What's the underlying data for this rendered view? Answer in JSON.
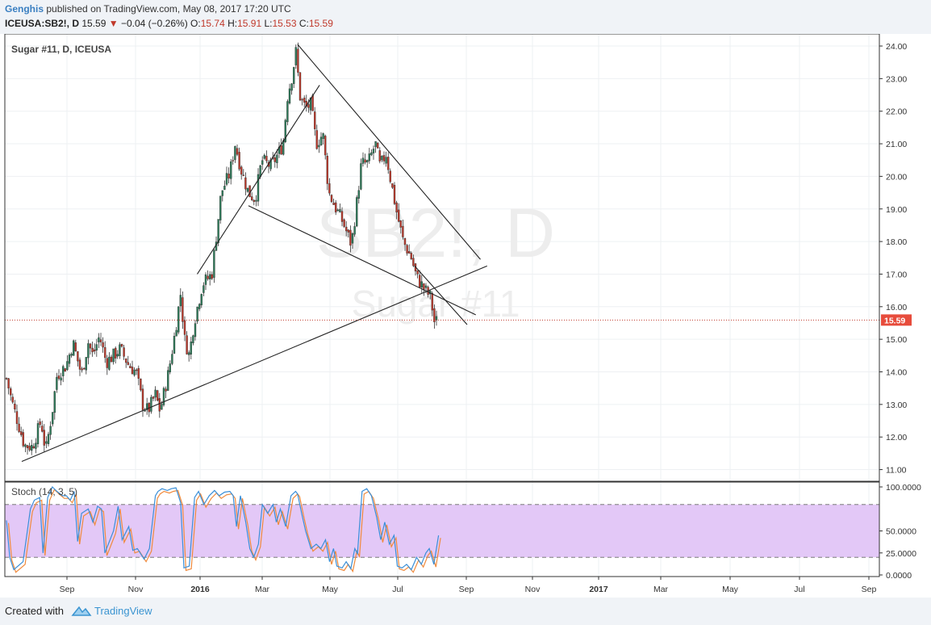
{
  "header": {
    "author": "Genghis",
    "published": "published on TradingView.com, May 08, 2017 17:20 UTC",
    "symbol": "ICEUSA:SB2!, D",
    "price": "15.59",
    "change": "−0.04 (−0.26%)",
    "o_label": "O:",
    "o": "15.74",
    "h_label": "H:",
    "h": "15.91",
    "l_label": "L:",
    "l": "15.53",
    "c_label": "C:",
    "c": "15.59"
  },
  "watermark": {
    "main": "SB2!, D",
    "sub": "Sugar #11"
  },
  "footer": {
    "created_with": "Created with",
    "brand": "TradingView"
  },
  "colors": {
    "up": "#2e7d5b",
    "down": "#c0392b",
    "k_line": "#3a8fd8",
    "d_line": "#f08a3c",
    "band": "#e3c8f7"
  },
  "chart_data": [
    {
      "type": "candlestick",
      "title": "Sugar #11, D, ICEUSA",
      "x_ticks": [
        "Sep",
        "Nov",
        "2016",
        "Mar",
        "May",
        "Jul",
        "Sep",
        "Nov",
        "2017",
        "Mar",
        "May",
        "Jul",
        "Sep"
      ],
      "y_ticks": [
        "24.00",
        "23.00",
        "22.00",
        "21.00",
        "20.00",
        "19.00",
        "18.00",
        "17.00",
        "16.00",
        "15.00",
        "14.00",
        "13.00",
        "12.00",
        "11.00"
      ],
      "ylim": [
        10.7,
        24.3
      ],
      "last_price_label": "15.59",
      "last_price": 15.59,
      "close_path": [
        [
          "2015-07-28",
          13.8
        ],
        [
          "2015-08-05",
          13.1
        ],
        [
          "2015-08-15",
          12.4
        ],
        [
          "2015-08-24",
          11.75
        ],
        [
          "2015-09-05",
          11.7
        ],
        [
          "2015-09-18",
          12.5
        ],
        [
          "2015-09-25",
          11.55
        ],
        [
          "2015-10-05",
          12.8
        ],
        [
          "2015-10-12",
          13.9
        ],
        [
          "2015-10-26",
          14.2
        ],
        [
          "2015-11-05",
          14.9
        ],
        [
          "2015-11-18",
          13.9
        ],
        [
          "2015-11-28",
          14.9
        ],
        [
          "2015-12-05",
          14.5
        ],
        [
          "2015-12-15",
          15.1
        ],
        [
          "2015-12-25",
          14.3
        ],
        [
          "2016-01-05",
          14.5
        ],
        [
          "2016-01-15",
          14.7
        ],
        [
          "2016-01-28",
          14.2
        ],
        [
          "2016-02-08",
          14.0
        ],
        [
          "2016-02-18",
          13.0
        ],
        [
          "2016-02-26",
          12.8
        ],
        [
          "2016-03-08",
          13.3
        ],
        [
          "2016-03-15",
          12.8
        ],
        [
          "2016-03-28",
          14.0
        ],
        [
          "2016-04-05",
          15.0
        ],
        [
          "2016-04-15",
          16.4
        ],
        [
          "2016-04-21",
          15.0
        ],
        [
          "2016-04-28",
          14.5
        ],
        [
          "2016-05-05",
          15.5
        ],
        [
          "2016-05-18",
          16.7
        ],
        [
          "2016-06-01",
          17.0
        ],
        [
          "2016-06-15",
          19.5
        ],
        [
          "2016-06-28",
          20.1
        ],
        [
          "2016-07-06",
          21.0
        ],
        [
          "2016-07-15",
          20.2
        ],
        [
          "2016-07-26",
          19.5
        ],
        [
          "2016-08-05",
          19.3
        ],
        [
          "2016-08-15",
          20.5
        ],
        [
          "2016-08-29",
          20.3
        ],
        [
          "2016-09-09",
          20.7
        ],
        [
          "2016-09-16",
          21.0
        ],
        [
          "2016-09-23",
          22.5
        ],
        [
          "2016-10-01",
          23.2
        ],
        [
          "2016-10-05",
          23.9
        ],
        [
          "2016-10-12",
          22.4
        ],
        [
          "2016-10-20",
          22.1
        ],
        [
          "2016-10-28",
          22.2
        ],
        [
          "2016-11-05",
          21.0
        ],
        [
          "2016-11-15",
          21.3
        ],
        [
          "2016-11-24",
          19.5
        ],
        [
          "2016-12-05",
          19.0
        ],
        [
          "2016-12-15",
          18.6
        ],
        [
          "2016-12-28",
          17.9
        ],
        [
          "2017-01-05",
          19.2
        ],
        [
          "2017-01-12",
          20.4
        ],
        [
          "2017-01-22",
          20.4
        ],
        [
          "2017-02-02",
          21.0
        ],
        [
          "2017-02-09",
          20.3
        ],
        [
          "2017-02-18",
          20.7
        ],
        [
          "2017-02-24",
          20.0
        ],
        [
          "2017-03-06",
          18.9
        ],
        [
          "2017-03-16",
          18.0
        ],
        [
          "2017-03-28",
          17.5
        ],
        [
          "2017-04-05",
          16.9
        ],
        [
          "2017-04-18",
          16.5
        ],
        [
          "2017-04-26",
          16.3
        ],
        [
          "2017-05-02",
          15.5
        ],
        [
          "2017-05-08",
          15.59
        ]
      ],
      "trendlines": [
        [
          [
            "2015-08-20",
            11.25
          ],
          [
            "2017-07-20",
            17.25
          ]
        ],
        [
          [
            "2016-07-26",
            19.1
          ],
          [
            "2017-07-03",
            15.75
          ]
        ],
        [
          [
            "2016-05-10",
            17.0
          ],
          [
            "2016-11-10",
            22.8
          ]
        ],
        [
          [
            "2016-10-08",
            24.05
          ],
          [
            "2017-07-10",
            17.45
          ]
        ],
        [
          [
            "2017-04-02",
            17.25
          ],
          [
            "2017-06-20",
            15.45
          ]
        ]
      ]
    },
    {
      "type": "line",
      "title": "Stoch (14, 3, 5)",
      "y_ticks": [
        "100.0000",
        "50.0000",
        "25.0000",
        "0.0000"
      ],
      "ylim": [
        0,
        100
      ],
      "band": [
        20,
        80
      ],
      "series": [
        {
          "points": [
            [
              "2015-07-28",
              62
            ],
            [
              "2015-08-02",
              20
            ],
            [
              "2015-08-08",
              6
            ],
            [
              "2015-08-22",
              15
            ],
            [
              "2015-09-02",
              75
            ],
            [
              "2015-09-08",
              85
            ],
            [
              "2015-09-16",
              88
            ],
            [
              "2015-09-21",
              25
            ],
            [
              "2015-09-28",
              88
            ],
            [
              "2015-10-05",
              100
            ],
            [
              "2015-10-12",
              95
            ],
            [
              "2015-10-20",
              90
            ],
            [
              "2015-10-26",
              90
            ],
            [
              "2015-11-01",
              85
            ],
            [
              "2015-11-07",
              95
            ],
            [
              "2015-11-12",
              38
            ],
            [
              "2015-11-18",
              70
            ],
            [
              "2015-11-28",
              75
            ],
            [
              "2015-12-05",
              60
            ],
            [
              "2015-12-12",
              78
            ],
            [
              "2015-12-18",
              75
            ],
            [
              "2015-12-23",
              25
            ],
            [
              "2016-01-05",
              50
            ],
            [
              "2016-01-12",
              78
            ],
            [
              "2016-01-18",
              40
            ],
            [
              "2016-01-28",
              55
            ],
            [
              "2016-02-03",
              28
            ],
            [
              "2016-02-10",
              30
            ],
            [
              "2016-02-20",
              18
            ],
            [
              "2016-02-28",
              30
            ],
            [
              "2016-03-08",
              90
            ],
            [
              "2016-03-12",
              95
            ],
            [
              "2016-03-18",
              98
            ],
            [
              "2016-03-26",
              96
            ],
            [
              "2016-04-01",
              98
            ],
            [
              "2016-04-08",
              99
            ],
            [
              "2016-04-15",
              82
            ],
            [
              "2016-04-20",
              8
            ],
            [
              "2016-04-28",
              10
            ],
            [
              "2016-05-06",
              88
            ],
            [
              "2016-05-12",
              95
            ],
            [
              "2016-05-20",
              80
            ],
            [
              "2016-05-28",
              90
            ],
            [
              "2016-06-05",
              96
            ],
            [
              "2016-06-12",
              90
            ],
            [
              "2016-06-20",
              94
            ],
            [
              "2016-06-28",
              95
            ],
            [
              "2016-07-03",
              90
            ],
            [
              "2016-07-08",
              55
            ],
            [
              "2016-07-14",
              90
            ],
            [
              "2016-07-22",
              60
            ],
            [
              "2016-07-28",
              30
            ],
            [
              "2016-08-03",
              20
            ],
            [
              "2016-08-10",
              35
            ],
            [
              "2016-08-16",
              80
            ],
            [
              "2016-08-24",
              70
            ],
            [
              "2016-09-01",
              80
            ],
            [
              "2016-09-06",
              60
            ],
            [
              "2016-09-12",
              75
            ],
            [
              "2016-09-20",
              55
            ],
            [
              "2016-09-28",
              90
            ],
            [
              "2016-10-05",
              95
            ],
            [
              "2016-10-08",
              92
            ],
            [
              "2016-10-14",
              70
            ],
            [
              "2016-10-20",
              50
            ],
            [
              "2016-10-28",
              30
            ],
            [
              "2016-11-05",
              35
            ],
            [
              "2016-11-12",
              30
            ],
            [
              "2016-11-19",
              40
            ],
            [
              "2016-11-25",
              15
            ],
            [
              "2016-12-01",
              30
            ],
            [
              "2016-12-06",
              10
            ],
            [
              "2016-12-14",
              8
            ],
            [
              "2016-12-20",
              15
            ],
            [
              "2016-12-27",
              7
            ],
            [
              "2017-01-02",
              30
            ],
            [
              "2017-01-06",
              24
            ],
            [
              "2017-01-13",
              95
            ],
            [
              "2017-01-20",
              98
            ],
            [
              "2017-01-27",
              90
            ],
            [
              "2017-02-04",
              65
            ],
            [
              "2017-02-10",
              40
            ],
            [
              "2017-02-16",
              60
            ],
            [
              "2017-02-23",
              35
            ],
            [
              "2017-03-02",
              45
            ],
            [
              "2017-03-07",
              10
            ],
            [
              "2017-03-14",
              8
            ],
            [
              "2017-03-21",
              12
            ],
            [
              "2017-03-28",
              6
            ],
            [
              "2017-04-05",
              20
            ],
            [
              "2017-04-12",
              12
            ],
            [
              "2017-04-19",
              25
            ],
            [
              "2017-04-24",
              30
            ],
            [
              "2017-05-01",
              12
            ],
            [
              "2017-05-08",
              45
            ]
          ]
        }
      ]
    }
  ]
}
